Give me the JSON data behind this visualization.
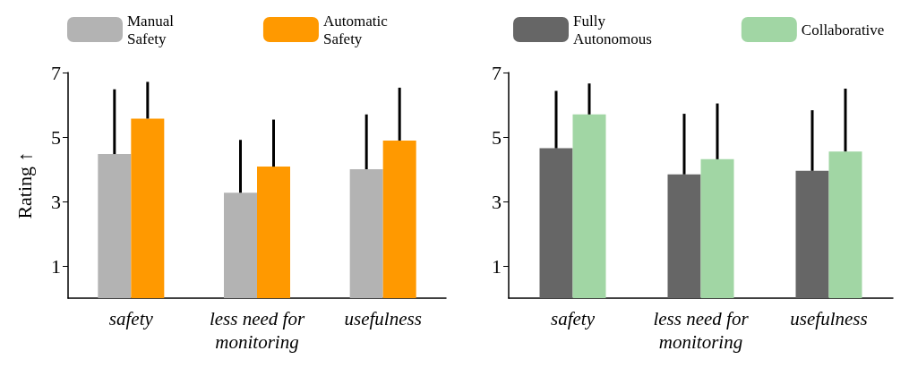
{
  "chart_data": [
    {
      "type": "bar",
      "ylabel": "Rating ↑",
      "categories": [
        "safety",
        "less need for\nmonitoring",
        "usefulness"
      ],
      "ylim": [
        0,
        7
      ],
      "yticks": [
        1,
        3,
        5,
        7
      ],
      "grid": false,
      "legend": "top",
      "series": [
        {
          "name": "Manual\nSafety",
          "color": "#b3b3b3",
          "values": [
            4.47,
            3.27,
            4.0
          ],
          "errors": [
            [
              4.47,
              6.48
            ],
            [
              3.27,
              4.91
            ],
            [
              4.0,
              5.7
            ]
          ]
        },
        {
          "name": "Automatic\nSafety",
          "color": "#ff9900",
          "values": [
            5.57,
            4.08,
            4.89
          ],
          "errors": [
            [
              5.57,
              6.71
            ],
            [
              4.08,
              5.54
            ],
            [
              4.89,
              6.53
            ]
          ]
        }
      ]
    },
    {
      "type": "bar",
      "categories": [
        "safety",
        "less need for\nmonitoring",
        "usefulness"
      ],
      "ylim": [
        0,
        7
      ],
      "yticks": [
        1,
        3,
        5,
        7
      ],
      "grid": false,
      "legend": "top",
      "series": [
        {
          "name": "Fully\nAutonomous",
          "color": "#666666",
          "values": [
            4.65,
            3.84,
            3.95
          ],
          "errors": [
            [
              4.65,
              6.43
            ],
            [
              3.84,
              5.72
            ],
            [
              3.95,
              5.83
            ]
          ]
        },
        {
          "name": "Collaborative",
          "color": "#a1d6a4",
          "values": [
            5.7,
            4.31,
            4.55
          ],
          "errors": [
            [
              5.7,
              6.66
            ],
            [
              4.31,
              6.04
            ],
            [
              4.55,
              6.5
            ]
          ]
        }
      ]
    }
  ]
}
